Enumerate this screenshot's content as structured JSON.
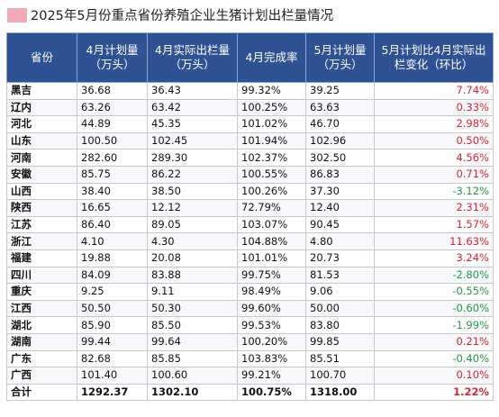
{
  "title": "2025年5月份重点省份养殖企业生猪计划出栏量情况",
  "colors": {
    "header_bg": "#2f5294",
    "increase": "#e0212b",
    "decrease": "#1f9a45"
  },
  "headers": [
    "省份",
    "4月计划量（万头）",
    "4月实际出栏量（万头）",
    "4月完成率",
    "5月计划量（万头）",
    "5月计划比4月实际出栏变化（环比）"
  ],
  "rows": [
    {
      "province": "黑吉",
      "apr_plan": "36.68",
      "apr_actual": "36.43",
      "apr_rate": "99.32%",
      "may_plan": "39.25",
      "mom": "7.74%",
      "trend": "up"
    },
    {
      "province": "辽内",
      "apr_plan": "63.26",
      "apr_actual": "63.42",
      "apr_rate": "100.25%",
      "may_plan": "63.63",
      "mom": "0.33%",
      "trend": "up"
    },
    {
      "province": "河北",
      "apr_plan": "44.89",
      "apr_actual": "45.35",
      "apr_rate": "101.02%",
      "may_plan": "46.70",
      "mom": "2.98%",
      "trend": "up"
    },
    {
      "province": "山东",
      "apr_plan": "100.50",
      "apr_actual": "102.45",
      "apr_rate": "101.94%",
      "may_plan": "102.96",
      "mom": "0.50%",
      "trend": "up"
    },
    {
      "province": "河南",
      "apr_plan": "282.60",
      "apr_actual": "289.30",
      "apr_rate": "102.37%",
      "may_plan": "302.50",
      "mom": "4.56%",
      "trend": "up"
    },
    {
      "province": "安徽",
      "apr_plan": "85.75",
      "apr_actual": "86.22",
      "apr_rate": "100.55%",
      "may_plan": "86.83",
      "mom": "0.71%",
      "trend": "up"
    },
    {
      "province": "山西",
      "apr_plan": "38.40",
      "apr_actual": "38.50",
      "apr_rate": "100.26%",
      "may_plan": "37.30",
      "mom": "-3.12%",
      "trend": "down"
    },
    {
      "province": "陕西",
      "apr_plan": "16.65",
      "apr_actual": "12.12",
      "apr_rate": "72.79%",
      "may_plan": "12.40",
      "mom": "2.31%",
      "trend": "up"
    },
    {
      "province": "江苏",
      "apr_plan": "86.40",
      "apr_actual": "89.05",
      "apr_rate": "103.07%",
      "may_plan": "90.45",
      "mom": "1.57%",
      "trend": "up"
    },
    {
      "province": "浙江",
      "apr_plan": "4.10",
      "apr_actual": "4.30",
      "apr_rate": "104.88%",
      "may_plan": "4.80",
      "mom": "11.63%",
      "trend": "up"
    },
    {
      "province": "福建",
      "apr_plan": "19.88",
      "apr_actual": "20.08",
      "apr_rate": "101.01%",
      "may_plan": "20.73",
      "mom": "3.24%",
      "trend": "up"
    },
    {
      "province": "四川",
      "apr_plan": "84.09",
      "apr_actual": "83.88",
      "apr_rate": "99.75%",
      "may_plan": "81.53",
      "mom": "-2.80%",
      "trend": "down"
    },
    {
      "province": "重庆",
      "apr_plan": "9.25",
      "apr_actual": "9.11",
      "apr_rate": "98.49%",
      "may_plan": "9.06",
      "mom": "-0.55%",
      "trend": "down"
    },
    {
      "province": "江西",
      "apr_plan": "50.50",
      "apr_actual": "50.30",
      "apr_rate": "99.60%",
      "may_plan": "50.00",
      "mom": "-0.60%",
      "trend": "down"
    },
    {
      "province": "湖北",
      "apr_plan": "85.90",
      "apr_actual": "85.50",
      "apr_rate": "99.53%",
      "may_plan": "83.80",
      "mom": "-1.99%",
      "trend": "down"
    },
    {
      "province": "湖南",
      "apr_plan": "99.44",
      "apr_actual": "99.64",
      "apr_rate": "100.20%",
      "may_plan": "99.85",
      "mom": "0.21%",
      "trend": "up"
    },
    {
      "province": "广东",
      "apr_plan": "82.68",
      "apr_actual": "85.85",
      "apr_rate": "103.83%",
      "may_plan": "85.51",
      "mom": "-0.40%",
      "trend": "down"
    },
    {
      "province": "广西",
      "apr_plan": "101.40",
      "apr_actual": "100.60",
      "apr_rate": "99.21%",
      "may_plan": "100.70",
      "mom": "0.10%",
      "trend": "up"
    },
    {
      "province": "合计",
      "apr_plan": "1292.37",
      "apr_actual": "1302.10",
      "apr_rate": "100.75%",
      "may_plan": "1318.00",
      "mom": "1.22%",
      "trend": "up"
    }
  ]
}
